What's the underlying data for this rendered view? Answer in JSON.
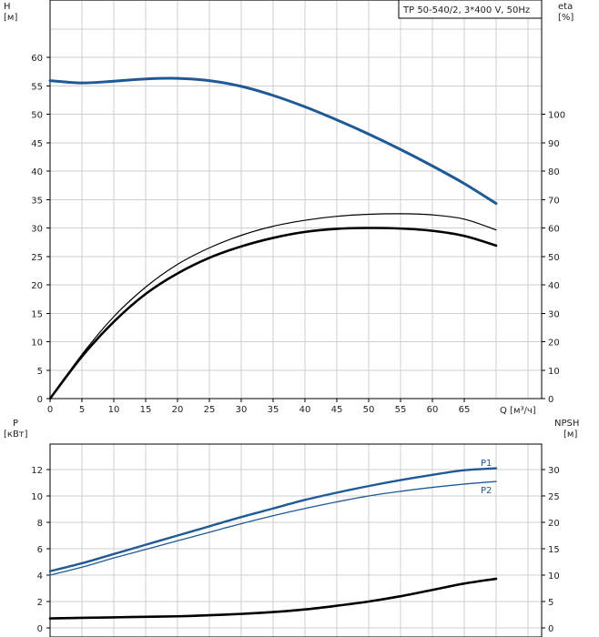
{
  "chart_data": [
    {
      "type": "line",
      "title": "TP 50-540/2, 3*400 V, 50Hz",
      "xlabel": "Q [м³/ч]",
      "x_ticks": [
        "0",
        "5",
        "10",
        "15",
        "20",
        "25",
        "30",
        "35",
        "40",
        "45",
        "50",
        "55",
        "60",
        "65"
      ],
      "xlim": [
        0,
        70
      ],
      "ylabel_left": "H\n[м]",
      "ylabel_left_lines": [
        "H",
        "[м]"
      ],
      "ylim_left": [
        0,
        65
      ],
      "y_ticks_left": [
        "0",
        "5",
        "10",
        "15",
        "20",
        "25",
        "30",
        "35",
        "40",
        "45",
        "50",
        "55",
        "60"
      ],
      "ylabel_right": "eta\n[%]",
      "ylabel_right_lines": [
        "eta",
        "[%]"
      ],
      "ylim_right": [
        0,
        130
      ],
      "y_ticks_right": [
        "0",
        "10",
        "20",
        "30",
        "40",
        "50",
        "60",
        "70",
        "80",
        "90",
        "100"
      ],
      "grid": true,
      "series": [
        {
          "kind": "head",
          "axis": "left",
          "color": "#1f5a96",
          "x": [
            0,
            5,
            10,
            15,
            20,
            25,
            30,
            35,
            40,
            45,
            50,
            55,
            60,
            65,
            70
          ],
          "y": [
            55.9,
            55.5,
            55.8,
            56.2,
            56.3,
            55.9,
            54.9,
            53.3,
            51.3,
            49.0,
            46.5,
            43.8,
            40.9,
            37.8,
            34.3
          ]
        },
        {
          "kind": "efficiency-pump",
          "axis": "right",
          "color": "#000000",
          "x": [
            0,
            5,
            10,
            15,
            20,
            25,
            30,
            35,
            40,
            45,
            50,
            55,
            60,
            65,
            70
          ],
          "y": [
            0,
            15.5,
            28.8,
            39.2,
            47.2,
            53.0,
            57.4,
            60.6,
            62.7,
            64.1,
            64.8,
            65.0,
            64.6,
            63.1,
            59.3
          ]
        },
        {
          "kind": "efficiency-total",
          "axis": "right",
          "color": "#000000",
          "x": [
            0,
            5,
            10,
            15,
            20,
            25,
            30,
            35,
            40,
            45,
            50,
            55,
            60,
            65,
            70
          ],
          "y": [
            0,
            14.8,
            27.0,
            36.8,
            44.0,
            49.5,
            53.5,
            56.5,
            58.6,
            59.7,
            60.0,
            59.8,
            59.0,
            57.2,
            53.8
          ]
        }
      ]
    },
    {
      "type": "line",
      "xlim": [
        0,
        70
      ],
      "ylabel_left": "P\n[кВт]",
      "ylabel_left_lines": [
        "P",
        "[кВт]"
      ],
      "ylim_left": [
        0,
        14
      ],
      "y_ticks_left": [
        "0",
        "2",
        "4",
        "6",
        "8",
        "10",
        "12"
      ],
      "ylabel_right": "NPSH\n[м]",
      "ylabel_right_lines": [
        "NPSH",
        "[м]"
      ],
      "ylim_right": [
        0,
        35
      ],
      "y_ticks_right": [
        "0",
        "5",
        "10",
        "15",
        "20",
        "25",
        "30"
      ],
      "grid": true,
      "series": [
        {
          "name": "P1",
          "axis": "left",
          "color": "#1f5a96",
          "x": [
            0,
            5,
            10,
            15,
            20,
            25,
            30,
            35,
            40,
            45,
            50,
            55,
            60,
            65,
            70
          ],
          "y": [
            4.3,
            4.9,
            5.6,
            6.3,
            7.0,
            7.7,
            8.4,
            9.05,
            9.7,
            10.25,
            10.75,
            11.2,
            11.6,
            11.95,
            12.1
          ]
        },
        {
          "name": "P2",
          "axis": "left",
          "color": "#1f5a96",
          "x": [
            0,
            5,
            10,
            15,
            20,
            25,
            30,
            35,
            40,
            45,
            50,
            55,
            60,
            65,
            70
          ],
          "y": [
            4.0,
            4.6,
            5.3,
            5.95,
            6.6,
            7.25,
            7.9,
            8.5,
            9.05,
            9.55,
            10.0,
            10.35,
            10.65,
            10.9,
            11.1
          ]
        },
        {
          "kind": "npsh",
          "axis": "right",
          "color": "#000000",
          "x": [
            0,
            5,
            10,
            15,
            20,
            25,
            30,
            35,
            40,
            45,
            50,
            55,
            60,
            65,
            70
          ],
          "y": [
            1.8,
            1.9,
            2.0,
            2.1,
            2.2,
            2.4,
            2.65,
            3.0,
            3.5,
            4.2,
            5.0,
            6.0,
            7.2,
            8.4,
            9.3
          ]
        }
      ]
    }
  ]
}
